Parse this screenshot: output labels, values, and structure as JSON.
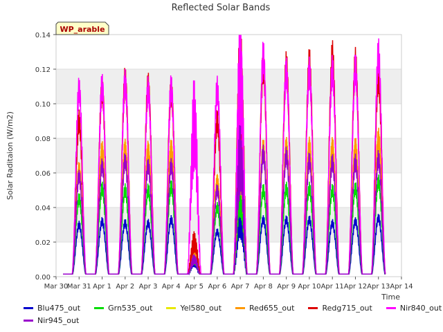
{
  "chart_data": {
    "type": "line",
    "title": "Reflected Solar Bands",
    "xlabel": "Time",
    "ylabel": "Solar Raditaion (W/m2)",
    "annotation": "WP_arable",
    "ylim": [
      0,
      0.14
    ],
    "yticks": [
      "0.00",
      "0.02",
      "0.04",
      "0.06",
      "0.08",
      "0.10",
      "0.12",
      "0.14"
    ],
    "xlim": [
      0,
      15
    ],
    "xticks": [
      "Mar 30",
      "Mar 31",
      "Apr 1",
      "Apr 2",
      "Apr 3",
      "Apr 4",
      "Apr 5",
      "Apr 6",
      "Apr 7",
      "Apr 8",
      "Apr 9",
      "Apr 10",
      "Apr 11",
      "Apr 12",
      "Apr 13",
      "Apr 14"
    ],
    "grid": "horizontal-bands",
    "legend_position": "bottom",
    "day_centers": [
      1,
      2,
      3,
      4,
      5,
      6,
      7,
      8,
      9,
      10,
      11,
      12,
      13,
      14
    ],
    "series": [
      {
        "name": "Blu475_out",
        "color": "#0000cc",
        "peaks": [
          0.03,
          0.032,
          0.031,
          0.031,
          0.033,
          0.008,
          0.026,
          0.032,
          0.033,
          0.033,
          0.033,
          0.031,
          0.032,
          0.034
        ]
      },
      {
        "name": "Grn535_out",
        "color": "#00dd00",
        "peaks": [
          0.045,
          0.051,
          0.05,
          0.05,
          0.052,
          0.01,
          0.04,
          0.05,
          0.05,
          0.051,
          0.051,
          0.05,
          0.051,
          0.055
        ]
      },
      {
        "name": "Yel580_out",
        "color": "#e8e800",
        "peaks": [
          0.06,
          0.072,
          0.073,
          0.072,
          0.073,
          0.012,
          0.055,
          0.07,
          0.073,
          0.074,
          0.074,
          0.074,
          0.074,
          0.078
        ]
      },
      {
        "name": "Red655_out",
        "color": "#ff9900",
        "peaks": [
          0.062,
          0.073,
          0.074,
          0.073,
          0.074,
          0.012,
          0.055,
          0.072,
          0.074,
          0.075,
          0.075,
          0.075,
          0.075,
          0.08
        ]
      },
      {
        "name": "Redg715_out",
        "color": "#dd0000",
        "peaks": [
          0.09,
          0.108,
          0.113,
          0.11,
          0.107,
          0.02,
          0.09,
          0.115,
          0.122,
          0.121,
          0.123,
          0.127,
          0.123,
          0.115
        ]
      },
      {
        "name": "Nir840_out",
        "color": "#ff00ff",
        "peaks": [
          0.108,
          0.11,
          0.112,
          0.108,
          0.109,
          0.088,
          0.108,
          0.117,
          0.127,
          0.118,
          0.118,
          0.119,
          0.12,
          0.128
        ]
      },
      {
        "name": "Nir945_out",
        "color": "#9900cc",
        "peaks": [
          0.058,
          0.064,
          0.067,
          0.064,
          0.064,
          0.01,
          0.05,
          0.068,
          0.071,
          0.07,
          0.067,
          0.066,
          0.066,
          0.068
        ]
      }
    ]
  }
}
